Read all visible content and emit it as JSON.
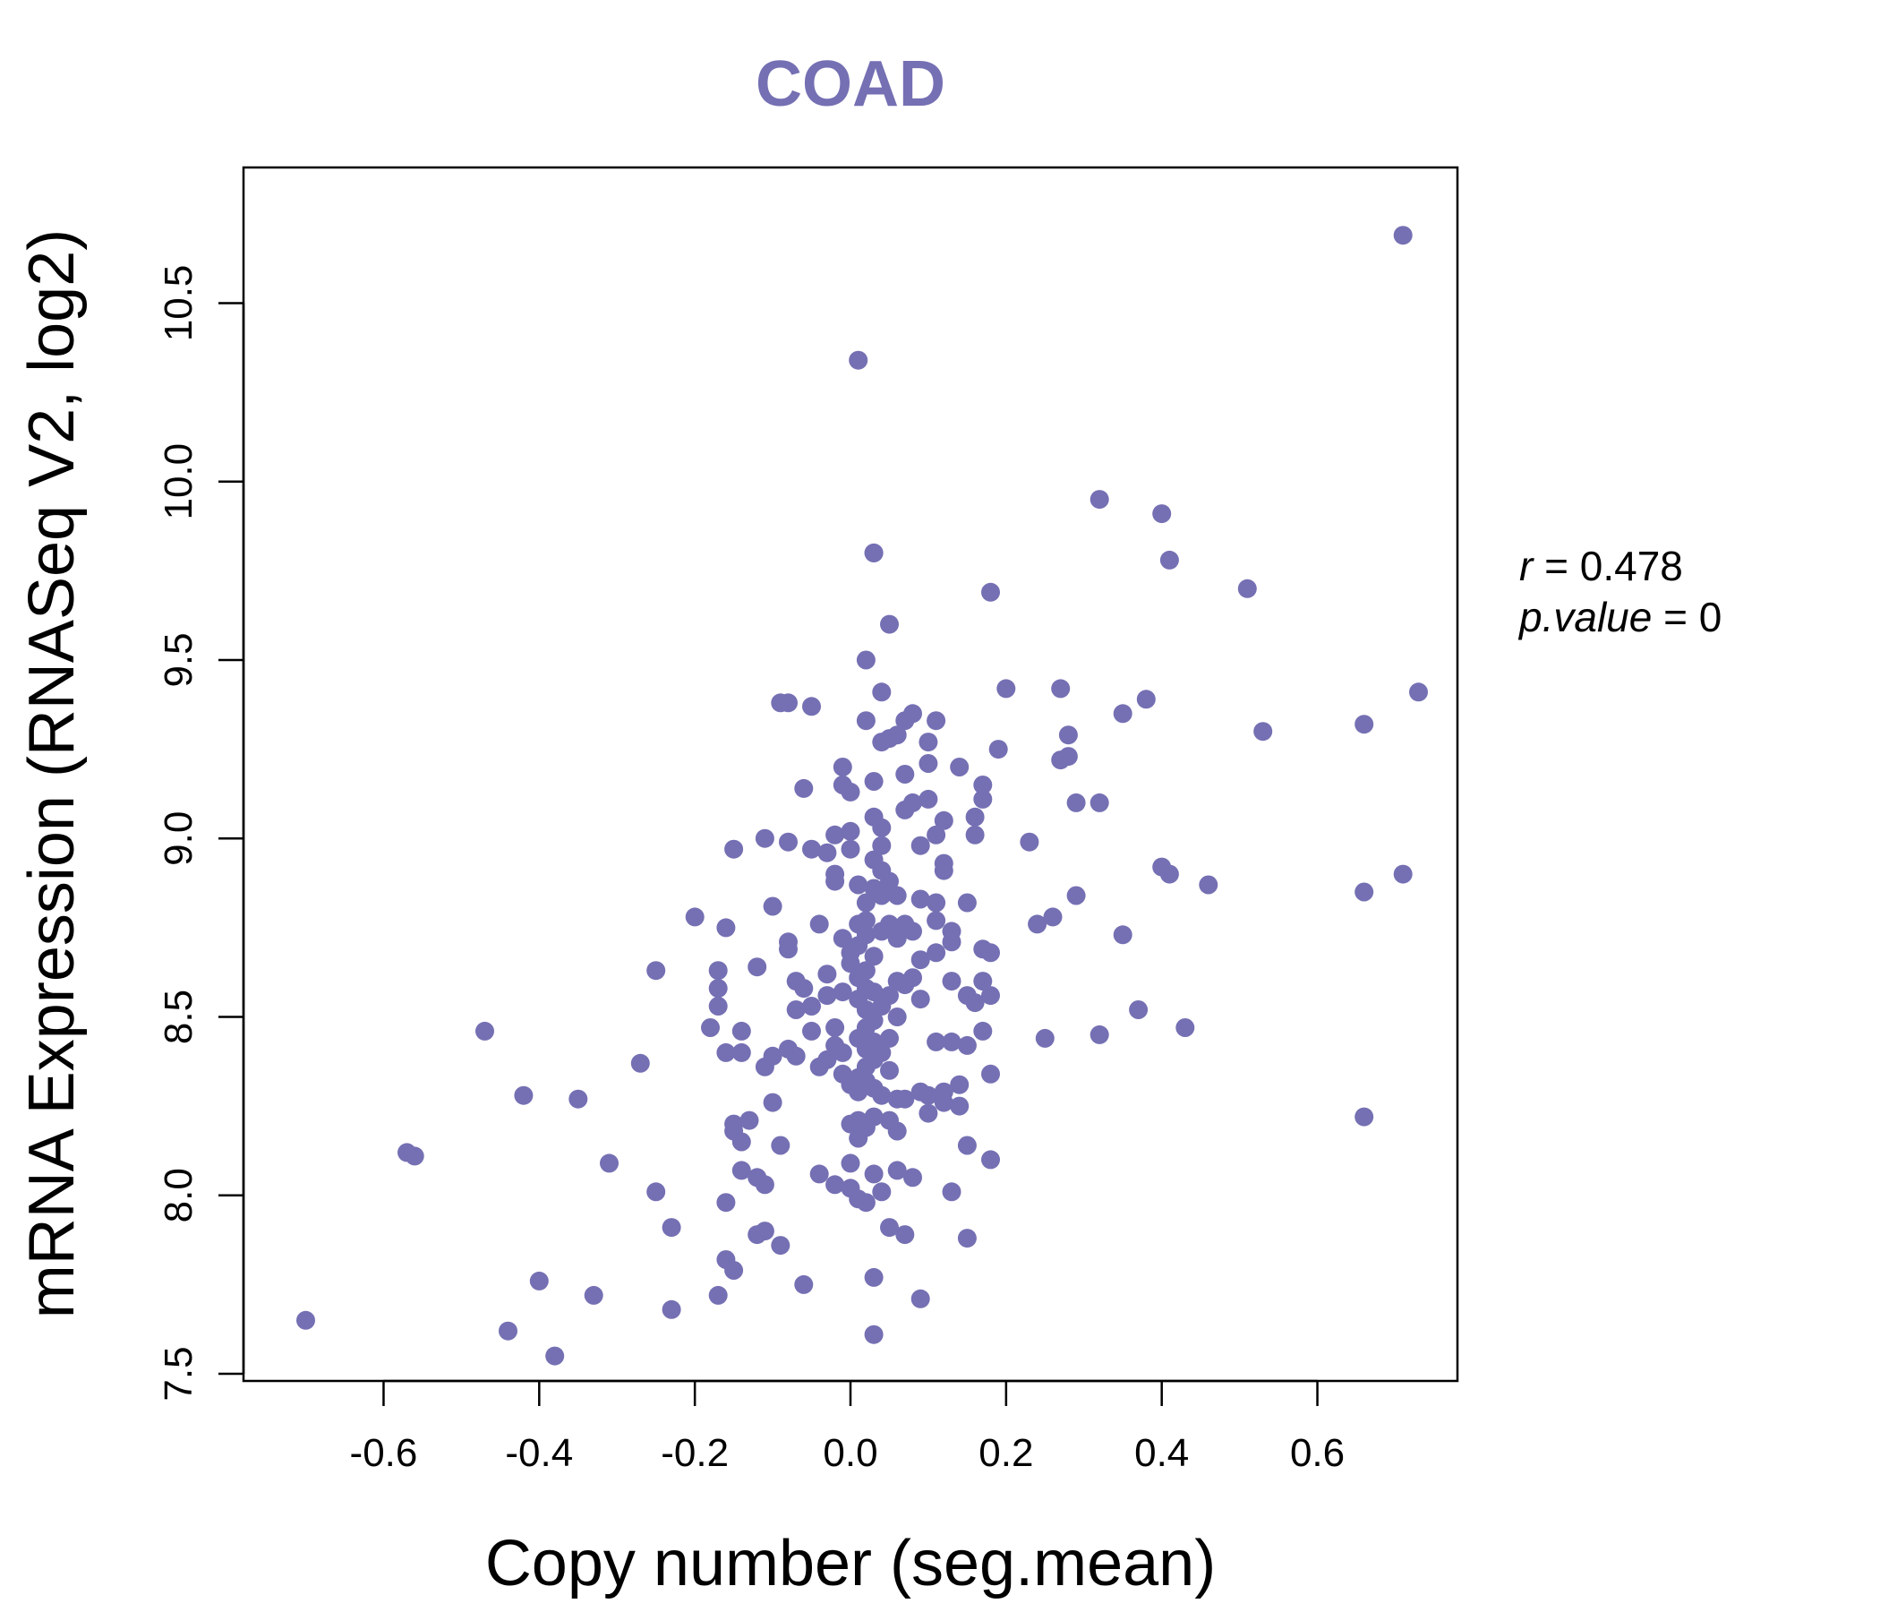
{
  "chart_data": {
    "type": "scatter",
    "title": "COAD",
    "xlabel": "Copy number (seg.mean)",
    "ylabel": "mRNA Expression (RNASeq V2, log2)",
    "xlim": [
      -0.78,
      0.78
    ],
    "ylim": [
      7.48,
      10.88
    ],
    "xticks": [
      -0.6,
      -0.4,
      -0.2,
      0.0,
      0.2,
      0.4,
      0.6
    ],
    "xtick_labels": [
      "-0.6",
      "-0.4",
      "-0.2",
      "0.0",
      "0.2",
      "0.4",
      "0.6"
    ],
    "yticks": [
      7.5,
      8.0,
      8.5,
      9.0,
      9.5,
      10.0,
      10.5
    ],
    "ytick_labels": [
      "7.5",
      "8.0",
      "8.5",
      "9.0",
      "9.5",
      "10.0",
      "10.5"
    ],
    "color": "#7570b3",
    "stats": {
      "r_label": "r",
      "r_value": "0.478",
      "p_label": "p.value",
      "p_value": "0"
    },
    "points": [
      [
        -0.7,
        7.65
      ],
      [
        -0.57,
        8.12
      ],
      [
        -0.56,
        8.11
      ],
      [
        -0.47,
        8.46
      ],
      [
        -0.44,
        7.62
      ],
      [
        -0.42,
        8.28
      ],
      [
        -0.4,
        7.76
      ],
      [
        -0.38,
        7.55
      ],
      [
        -0.35,
        8.27
      ],
      [
        -0.33,
        7.72
      ],
      [
        -0.31,
        8.09
      ],
      [
        -0.27,
        8.37
      ],
      [
        -0.25,
        8.63
      ],
      [
        -0.25,
        8.01
      ],
      [
        -0.23,
        7.91
      ],
      [
        -0.23,
        7.68
      ],
      [
        -0.2,
        8.78
      ],
      [
        -0.18,
        8.47
      ],
      [
        -0.17,
        8.53
      ],
      [
        -0.17,
        8.63
      ],
      [
        -0.17,
        8.58
      ],
      [
        -0.17,
        7.72
      ],
      [
        -0.16,
        7.82
      ],
      [
        -0.16,
        8.75
      ],
      [
        -0.16,
        8.4
      ],
      [
        -0.16,
        7.98
      ],
      [
        -0.15,
        8.97
      ],
      [
        -0.15,
        8.2
      ],
      [
        -0.15,
        8.18
      ],
      [
        -0.15,
        7.79
      ],
      [
        -0.14,
        8.46
      ],
      [
        -0.14,
        8.4
      ],
      [
        -0.14,
        8.15
      ],
      [
        -0.14,
        8.07
      ],
      [
        -0.13,
        8.21
      ],
      [
        -0.12,
        8.64
      ],
      [
        -0.12,
        8.05
      ],
      [
        -0.12,
        7.89
      ],
      [
        -0.11,
        9.0
      ],
      [
        -0.11,
        8.36
      ],
      [
        -0.11,
        7.9
      ],
      [
        -0.11,
        8.03
      ],
      [
        -0.1,
        8.81
      ],
      [
        -0.1,
        8.39
      ],
      [
        -0.1,
        8.26
      ],
      [
        -0.09,
        9.38
      ],
      [
        -0.09,
        8.14
      ],
      [
        -0.09,
        7.86
      ],
      [
        -0.08,
        9.38
      ],
      [
        -0.08,
        8.71
      ],
      [
        -0.08,
        8.69
      ],
      [
        -0.08,
        8.99
      ],
      [
        -0.08,
        8.41
      ],
      [
        -0.07,
        8.39
      ],
      [
        -0.07,
        8.6
      ],
      [
        -0.07,
        8.52
      ],
      [
        -0.06,
        7.75
      ],
      [
        -0.06,
        8.58
      ],
      [
        -0.06,
        9.14
      ],
      [
        -0.05,
        8.97
      ],
      [
        -0.05,
        8.53
      ],
      [
        -0.05,
        8.46
      ],
      [
        -0.05,
        9.37
      ],
      [
        -0.04,
        8.06
      ],
      [
        -0.04,
        8.76
      ],
      [
        -0.04,
        8.36
      ],
      [
        -0.03,
        8.62
      ],
      [
        -0.03,
        8.56
      ],
      [
        -0.03,
        8.38
      ],
      [
        -0.03,
        8.96
      ],
      [
        -0.02,
        8.9
      ],
      [
        -0.02,
        8.88
      ],
      [
        -0.02,
        9.01
      ],
      [
        -0.02,
        8.47
      ],
      [
        -0.02,
        8.42
      ],
      [
        -0.02,
        8.03
      ],
      [
        -0.01,
        9.2
      ],
      [
        -0.01,
        9.15
      ],
      [
        -0.01,
        8.72
      ],
      [
        -0.01,
        8.57
      ],
      [
        -0.01,
        8.4
      ],
      [
        -0.01,
        8.34
      ],
      [
        0.0,
        8.31
      ],
      [
        0.0,
        8.2
      ],
      [
        0.0,
        8.09
      ],
      [
        0.0,
        8.02
      ],
      [
        0.0,
        8.68
      ],
      [
        0.0,
        9.02
      ],
      [
        0.0,
        9.13
      ],
      [
        0.0,
        8.97
      ],
      [
        0.0,
        8.65
      ],
      [
        0.01,
        8.61
      ],
      [
        0.01,
        8.55
      ],
      [
        0.01,
        8.44
      ],
      [
        0.01,
        8.33
      ],
      [
        0.01,
        8.29
      ],
      [
        0.01,
        8.21
      ],
      [
        0.01,
        8.16
      ],
      [
        0.01,
        7.99
      ],
      [
        0.01,
        10.34
      ],
      [
        0.01,
        8.87
      ],
      [
        0.01,
        8.76
      ],
      [
        0.01,
        8.7
      ],
      [
        0.02,
        8.63
      ],
      [
        0.02,
        8.58
      ],
      [
        0.02,
        8.52
      ],
      [
        0.02,
        8.47
      ],
      [
        0.02,
        8.41
      ],
      [
        0.02,
        8.36
      ],
      [
        0.02,
        8.32
      ],
      [
        0.02,
        8.19
      ],
      [
        0.02,
        7.98
      ],
      [
        0.02,
        9.5
      ],
      [
        0.02,
        9.33
      ],
      [
        0.02,
        8.82
      ],
      [
        0.02,
        8.77
      ],
      [
        0.02,
        8.73
      ],
      [
        0.03,
        8.67
      ],
      [
        0.03,
        8.57
      ],
      [
        0.03,
        8.49
      ],
      [
        0.03,
        8.43
      ],
      [
        0.03,
        8.38
      ],
      [
        0.03,
        8.3
      ],
      [
        0.03,
        8.22
      ],
      [
        0.03,
        8.06
      ],
      [
        0.03,
        7.77
      ],
      [
        0.03,
        7.61
      ],
      [
        0.03,
        9.8
      ],
      [
        0.03,
        9.8
      ],
      [
        0.03,
        9.16
      ],
      [
        0.03,
        9.06
      ],
      [
        0.03,
        8.94
      ],
      [
        0.03,
        8.86
      ],
      [
        0.04,
        8.84
      ],
      [
        0.04,
        8.74
      ],
      [
        0.04,
        8.53
      ],
      [
        0.04,
        8.4
      ],
      [
        0.04,
        8.28
      ],
      [
        0.04,
        8.01
      ],
      [
        0.04,
        9.41
      ],
      [
        0.04,
        9.27
      ],
      [
        0.04,
        9.03
      ],
      [
        0.04,
        8.98
      ],
      [
        0.04,
        8.91
      ],
      [
        0.05,
        8.76
      ],
      [
        0.05,
        8.56
      ],
      [
        0.05,
        8.44
      ],
      [
        0.05,
        8.35
      ],
      [
        0.05,
        8.21
      ],
      [
        0.05,
        7.91
      ],
      [
        0.05,
        9.6
      ],
      [
        0.05,
        9.28
      ],
      [
        0.05,
        8.88
      ],
      [
        0.06,
        8.72
      ],
      [
        0.06,
        8.6
      ],
      [
        0.06,
        8.5
      ],
      [
        0.06,
        8.27
      ],
      [
        0.06,
        8.18
      ],
      [
        0.06,
        9.29
      ],
      [
        0.06,
        8.84
      ],
      [
        0.06,
        8.07
      ],
      [
        0.07,
        8.76
      ],
      [
        0.07,
        8.59
      ],
      [
        0.07,
        8.27
      ],
      [
        0.07,
        7.89
      ],
      [
        0.07,
        9.18
      ],
      [
        0.07,
        9.08
      ],
      [
        0.07,
        9.33
      ],
      [
        0.08,
        8.74
      ],
      [
        0.08,
        8.05
      ],
      [
        0.08,
        8.61
      ],
      [
        0.08,
        9.1
      ],
      [
        0.08,
        9.35
      ],
      [
        0.09,
        8.66
      ],
      [
        0.09,
        8.98
      ],
      [
        0.09,
        8.83
      ],
      [
        0.09,
        7.71
      ],
      [
        0.09,
        8.55
      ],
      [
        0.09,
        8.29
      ],
      [
        0.1,
        9.11
      ],
      [
        0.1,
        9.21
      ],
      [
        0.1,
        9.27
      ],
      [
        0.1,
        8.23
      ],
      [
        0.1,
        8.28
      ],
      [
        0.11,
        8.82
      ],
      [
        0.11,
        9.33
      ],
      [
        0.11,
        8.77
      ],
      [
        0.11,
        8.68
      ],
      [
        0.11,
        8.43
      ],
      [
        0.11,
        9.01
      ],
      [
        0.12,
        8.93
      ],
      [
        0.12,
        8.91
      ],
      [
        0.12,
        8.29
      ],
      [
        0.12,
        8.26
      ],
      [
        0.12,
        9.05
      ],
      [
        0.13,
        8.6
      ],
      [
        0.13,
        8.01
      ],
      [
        0.13,
        8.71
      ],
      [
        0.13,
        8.74
      ],
      [
        0.13,
        8.43
      ],
      [
        0.14,
        8.31
      ],
      [
        0.14,
        9.2
      ],
      [
        0.14,
        8.25
      ],
      [
        0.15,
        8.14
      ],
      [
        0.15,
        7.88
      ],
      [
        0.15,
        8.56
      ],
      [
        0.15,
        8.82
      ],
      [
        0.15,
        8.42
      ],
      [
        0.16,
        9.06
      ],
      [
        0.16,
        9.01
      ],
      [
        0.16,
        8.54
      ],
      [
        0.17,
        8.69
      ],
      [
        0.17,
        9.11
      ],
      [
        0.17,
        9.15
      ],
      [
        0.17,
        8.6
      ],
      [
        0.17,
        8.46
      ],
      [
        0.18,
        9.69
      ],
      [
        0.18,
        8.68
      ],
      [
        0.18,
        8.56
      ],
      [
        0.18,
        8.34
      ],
      [
        0.18,
        8.1
      ],
      [
        0.19,
        9.25
      ],
      [
        0.2,
        9.42
      ],
      [
        0.23,
        8.99
      ],
      [
        0.24,
        8.76
      ],
      [
        0.25,
        8.44
      ],
      [
        0.26,
        8.78
      ],
      [
        0.27,
        9.42
      ],
      [
        0.27,
        9.22
      ],
      [
        0.28,
        9.29
      ],
      [
        0.28,
        9.23
      ],
      [
        0.29,
        9.1
      ],
      [
        0.29,
        8.84
      ],
      [
        0.32,
        9.95
      ],
      [
        0.32,
        9.1
      ],
      [
        0.32,
        8.45
      ],
      [
        0.35,
        9.35
      ],
      [
        0.35,
        8.73
      ],
      [
        0.37,
        8.52
      ],
      [
        0.38,
        9.39
      ],
      [
        0.4,
        8.92
      ],
      [
        0.4,
        9.91
      ],
      [
        0.41,
        9.78
      ],
      [
        0.41,
        8.9
      ],
      [
        0.43,
        8.47
      ],
      [
        0.46,
        8.87
      ],
      [
        0.51,
        9.7
      ],
      [
        0.53,
        9.3
      ],
      [
        0.66,
        9.32
      ],
      [
        0.66,
        8.85
      ],
      [
        0.66,
        8.22
      ],
      [
        0.71,
        10.69
      ],
      [
        0.71,
        8.9
      ],
      [
        0.73,
        9.41
      ]
    ]
  }
}
